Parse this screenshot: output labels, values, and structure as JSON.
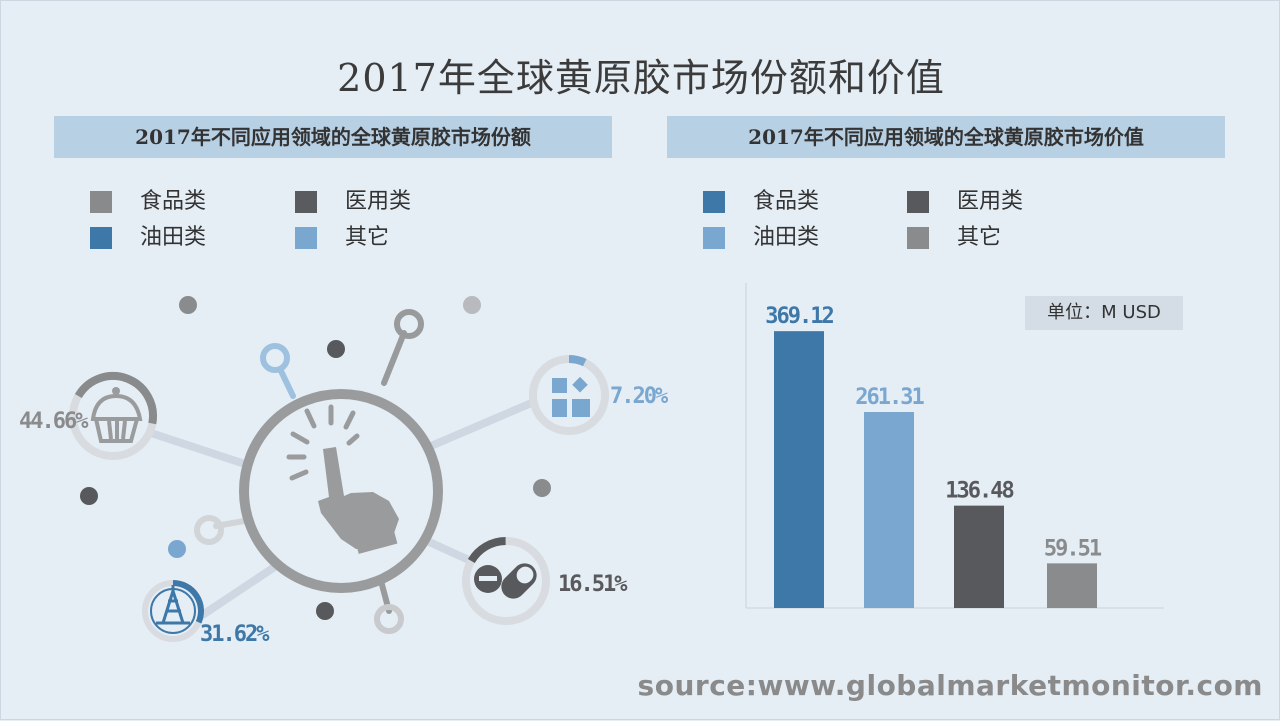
{
  "title": "2017年全球黄原胶市场份额和价值",
  "left_panel": {
    "header": "2017年不同应用领域的全球黄原胶市场份额",
    "legend": [
      {
        "label": "食品类",
        "color": "#888a8c"
      },
      {
        "label": "医用类",
        "color": "#5a5b5e"
      },
      {
        "label": "油田类",
        "color": "#3e78a8"
      },
      {
        "label": "其它",
        "color": "#7aa7d0"
      }
    ]
  },
  "right_panel": {
    "header": "2017年不同应用领域的全球黄原胶市场价值",
    "legend": [
      {
        "label": "食品类",
        "color": "#3e78a8"
      },
      {
        "label": "医用类",
        "color": "#58595c"
      },
      {
        "label": "油田类",
        "color": "#7aa7d0"
      },
      {
        "label": "其它",
        "color": "#8a8b8d"
      }
    ],
    "unit_label": "单位：M USD"
  },
  "source": "source:www.globalmarketmonitor.com",
  "chart_data": [
    {
      "type": "pie",
      "title": "2017年不同应用领域的全球黄原胶市场份额",
      "categories": [
        "食品类",
        "油田类",
        "医用类",
        "其它"
      ],
      "values": [
        44.66,
        31.62,
        16.51,
        7.2
      ],
      "labels": [
        "44.66%",
        "31.62%",
        "16.51%",
        "7.20%"
      ],
      "icons": [
        "cupcake-icon",
        "oil-derrick-icon",
        "pill-icon",
        "grid-icon"
      ],
      "colors": [
        "#888a8c",
        "#3e78a8",
        "#5a5b5e",
        "#7aa7d0"
      ]
    },
    {
      "type": "bar",
      "title": "2017年不同应用领域的全球黄原胶市场价值",
      "categories": [
        "食品类",
        "油田类",
        "医用类",
        "其它"
      ],
      "values": [
        369.12,
        261.31,
        136.48,
        59.51
      ],
      "value_labels": [
        "369.12",
        "261.31",
        "136.48",
        "59.51"
      ],
      "colors": [
        "#3e78a8",
        "#7aa7d0",
        "#58595c",
        "#8a8b8d"
      ],
      "unit": "M USD",
      "ylim": [
        0,
        400
      ]
    }
  ]
}
